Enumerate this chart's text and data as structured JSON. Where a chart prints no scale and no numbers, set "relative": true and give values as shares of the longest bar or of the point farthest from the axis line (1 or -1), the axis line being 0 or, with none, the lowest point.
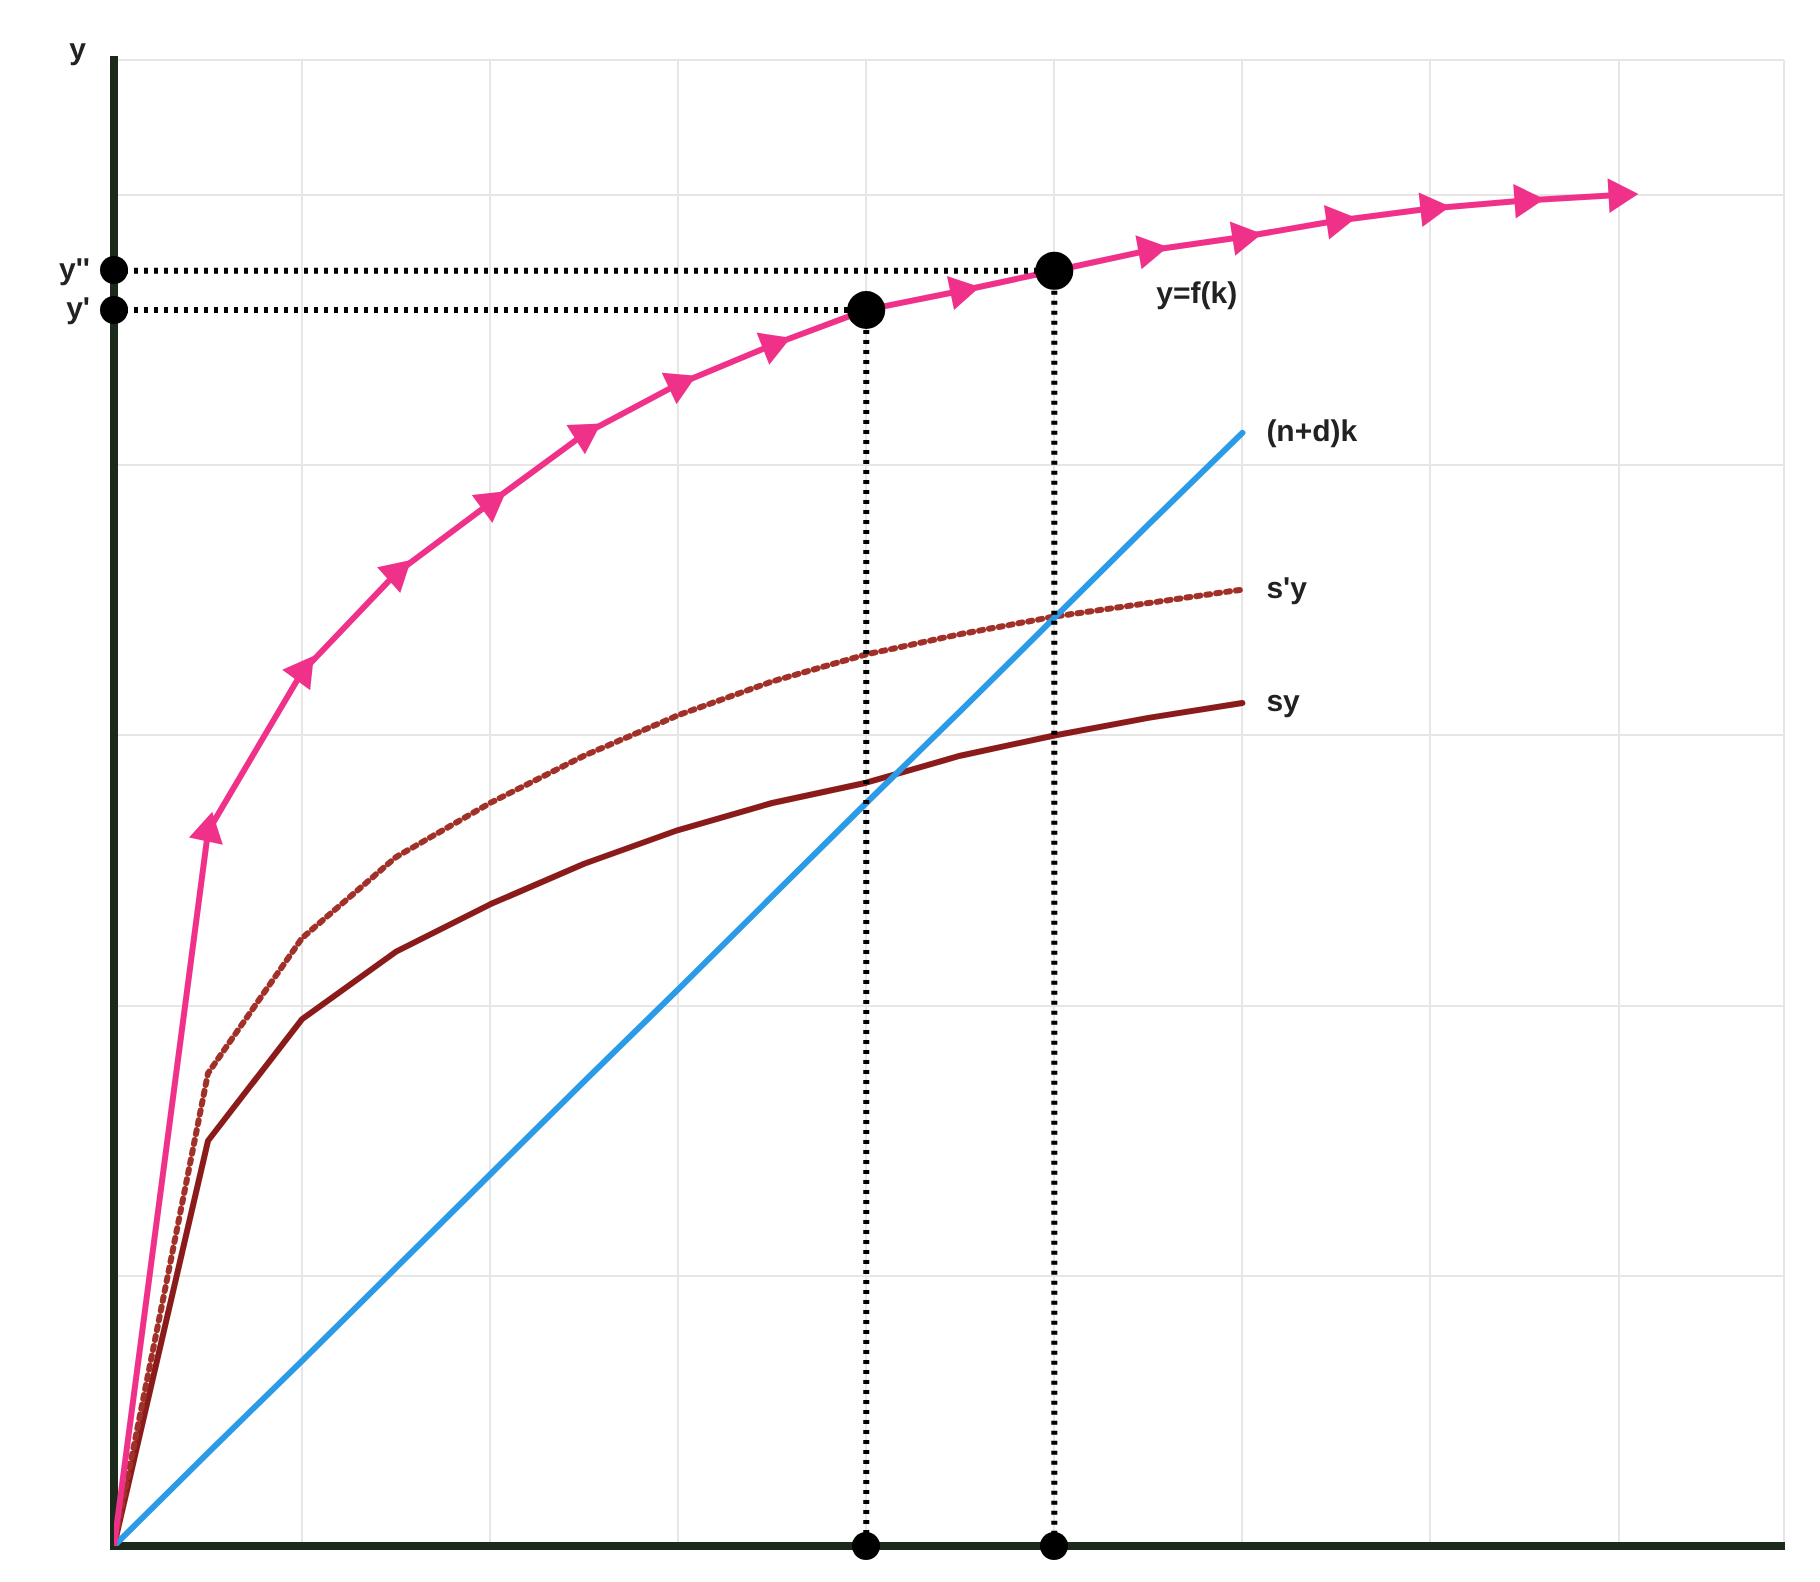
{
  "chart_data": {
    "type": "line",
    "relative": true,
    "ylabel": "y",
    "tick_labels": false,
    "grid": true,
    "legend": false,
    "categories": [
      null,
      null,
      null,
      null,
      null,
      null,
      null,
      null,
      null,
      null,
      null,
      null,
      null,
      null,
      null,
      null,
      null
    ],
    "series": [
      {
        "name": "y=f(k)",
        "color": "#f0318a",
        "marker": "triangle",
        "line_style": "solid",
        "values": [
          0,
          0.529,
          0.647,
          0.72,
          0.772,
          0.823,
          0.86,
          0.889,
          0.915,
          0.929,
          0.944,
          0.959,
          0.969,
          0.981,
          0.99,
          0.996,
          1
        ]
      },
      {
        "name": "(n+d)k",
        "color": "#2b9be8",
        "marker": "none",
        "line_style": "solid",
        "values": [
          0,
          0.069,
          0.137,
          0.206,
          0.275,
          0.344,
          0.412,
          0.481,
          0.55,
          0.618,
          0.687,
          0.756,
          0.824,
          null,
          null,
          null,
          null
        ]
      },
      {
        "name": "s'y",
        "color": "#a03028",
        "marker": "none",
        "line_style": "dotted",
        "values": [
          0,
          0.35,
          0.45,
          0.51,
          0.55,
          0.585,
          0.615,
          0.64,
          0.66,
          0.675,
          0.688,
          0.698,
          0.708,
          null,
          null,
          null,
          null
        ]
      },
      {
        "name": "sy",
        "color": "#8b1a1a",
        "marker": "none",
        "line_style": "solid",
        "values": [
          0,
          0.3,
          0.39,
          0.44,
          0.475,
          0.505,
          0.53,
          0.55,
          0.565,
          0.585,
          0.6,
          0.613,
          0.624,
          null,
          null,
          null,
          null
        ]
      }
    ],
    "ref_lines": [
      {
        "axis": "y",
        "value": 0.944,
        "label": "y''",
        "color": "#000000",
        "line_style": "dotted"
      },
      {
        "axis": "y",
        "value": 0.915,
        "label": "y'",
        "color": "#000000",
        "line_style": "dotted"
      }
    ]
  }
}
